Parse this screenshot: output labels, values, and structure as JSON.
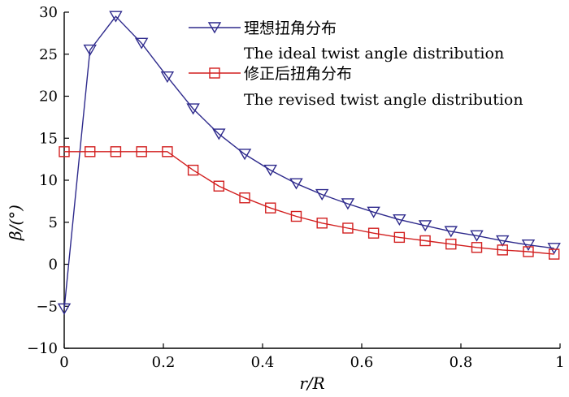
{
  "chart_data": {
    "type": "line",
    "title": "",
    "xlabel": "r/R",
    "ylabel": "β/(°)",
    "xlim": [
      0,
      1
    ],
    "ylim": [
      -10,
      30
    ],
    "xticks": [
      0,
      0.2,
      0.4,
      0.6,
      0.8,
      1
    ],
    "xtick_labels": [
      "0",
      "0.2",
      "0.4",
      "0.6",
      "0.8",
      "1"
    ],
    "yticks": [
      -10,
      -5,
      0,
      5,
      10,
      15,
      20,
      25,
      30
    ],
    "ytick_labels": [
      "−10",
      "−5",
      "0",
      "5",
      "10",
      "15",
      "20",
      "25",
      "30"
    ],
    "grid": false,
    "legend_position": "top-right",
    "series": [
      {
        "name_cn": "理想扭角分布",
        "name": "The ideal twist angle distribution",
        "color": "#2e2a8c",
        "marker": "triangle-down",
        "x": [
          0,
          0.052,
          0.104,
          0.156,
          0.208,
          0.26,
          0.312,
          0.364,
          0.416,
          0.468,
          0.52,
          0.572,
          0.624,
          0.676,
          0.728,
          0.78,
          0.832,
          0.884,
          0.936,
          0.988
        ],
        "y": [
          -5.3,
          25.5,
          29.5,
          26.3,
          22.3,
          18.5,
          15.5,
          13.1,
          11.2,
          9.6,
          8.3,
          7.2,
          6.2,
          5.3,
          4.6,
          3.9,
          3.4,
          2.8,
          2.3,
          1.9
        ]
      },
      {
        "name_cn": "修正后扭角分布",
        "name": "The revised twist angle distribution",
        "color": "#d21f1f",
        "marker": "square",
        "x": [
          0,
          0.052,
          0.104,
          0.156,
          0.208,
          0.26,
          0.312,
          0.364,
          0.416,
          0.468,
          0.52,
          0.572,
          0.624,
          0.676,
          0.728,
          0.78,
          0.832,
          0.884,
          0.936,
          0.988
        ],
        "y": [
          13.4,
          13.4,
          13.4,
          13.4,
          13.4,
          11.2,
          9.3,
          7.9,
          6.7,
          5.7,
          4.9,
          4.3,
          3.7,
          3.2,
          2.8,
          2.4,
          2.0,
          1.7,
          1.5,
          1.2
        ]
      }
    ]
  }
}
